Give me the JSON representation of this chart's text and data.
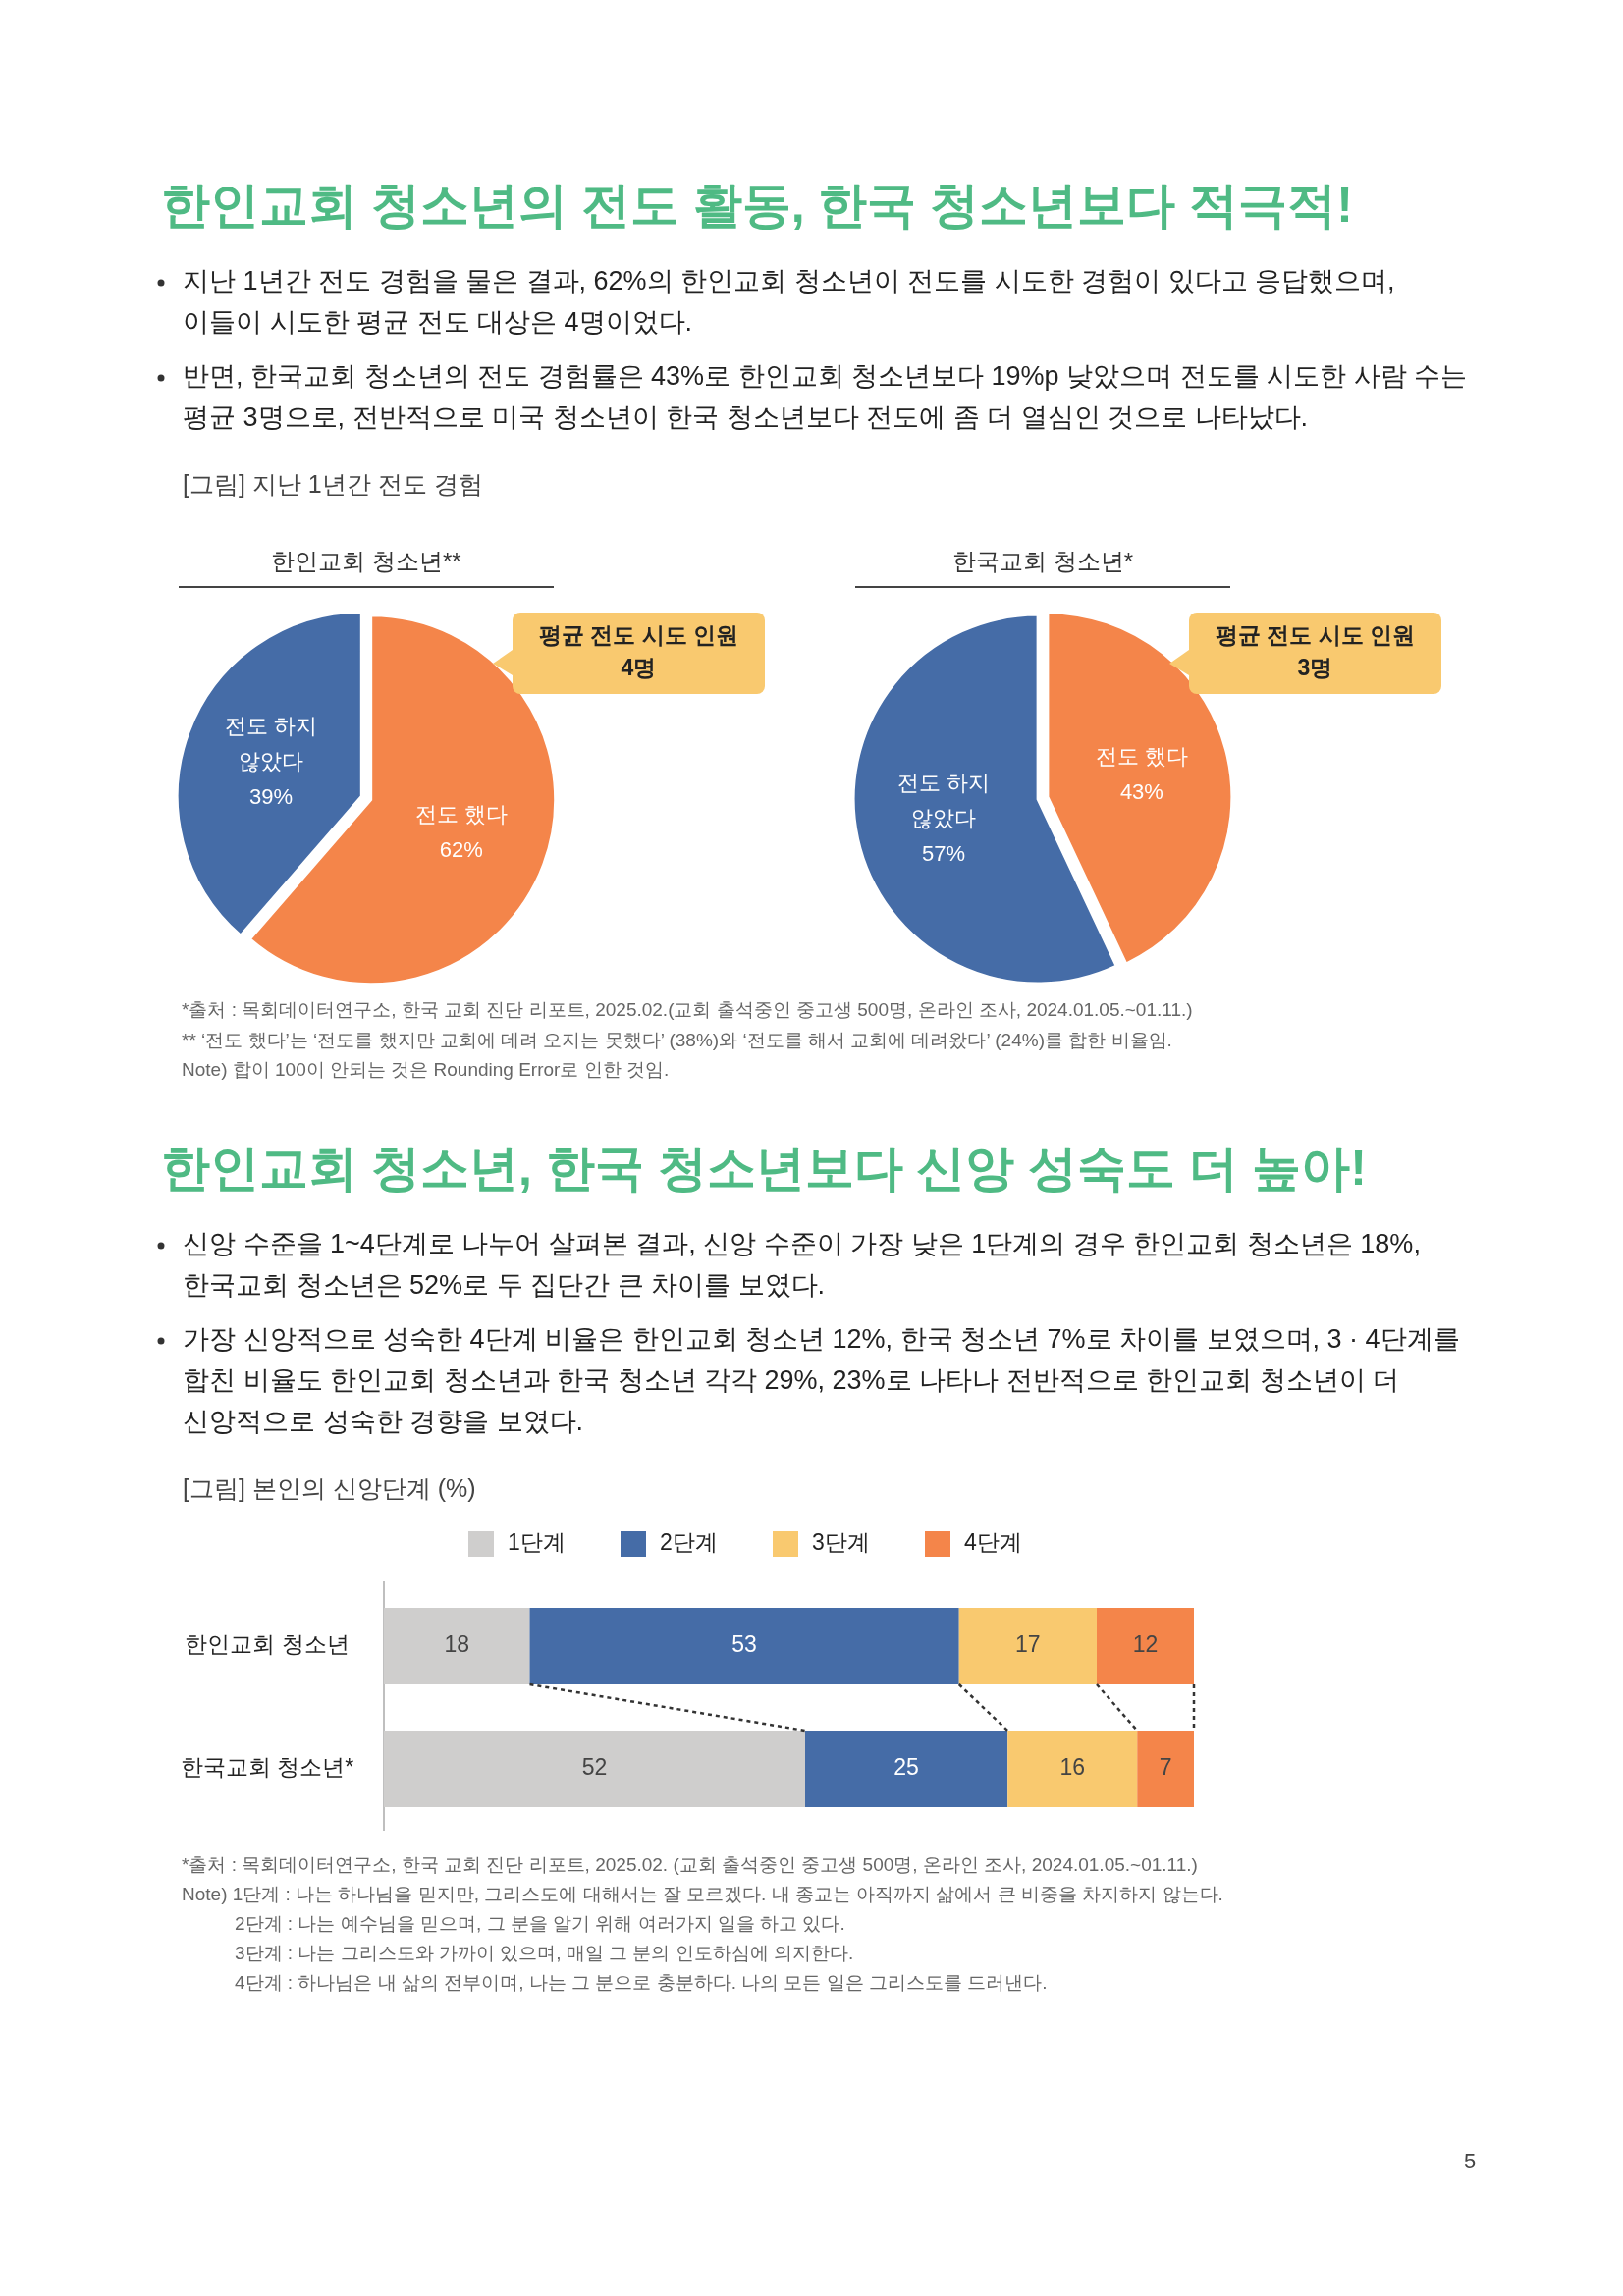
{
  "chart_data": [
    {
      "type": "other",
      "title": "한인교회 청소년의 전도 활동, 한국 청소년보다 적극적!",
      "subtitle": "[그림] 지난 1년간 전도 경험",
      "annotations": [
        "지난 1년간 전도 경험을 물은 결과, 62%의 한인교회 청소년이 전도를 시도한 경험이 있다고 응답했으며, 이들이 시도한 평균 전도 대상은 4명이었다.",
        "반면, 한국교회 청소년의 전도 경험률은 43%로 한인교회 청소년보다 19%p 낮았으며 전도를 시도한 사람 수는 평균 3명으로, 전반적으로 미국 청소년이 한국 청소년보다 전도에 좀 더 열심인 것으로 나타났다."
      ]
    },
    {
      "type": "pie",
      "title": "한인교회 청소년**",
      "categories": [
        "전도 했다",
        "전도 하지 않았다"
      ],
      "values": [
        62,
        39
      ],
      "value_labels": [
        "62%",
        "39%"
      ],
      "colors": [
        "#f4854a",
        "#456ca7"
      ],
      "annotations": [
        "평균 전도 시도 인원 4명"
      ]
    },
    {
      "type": "pie",
      "title": "한국교회 청소년*",
      "categories": [
        "전도 했다",
        "전도 하지 않았다"
      ],
      "values": [
        43,
        57
      ],
      "value_labels": [
        "43%",
        "57%"
      ],
      "colors": [
        "#f4854a",
        "#456ca7"
      ],
      "annotations": [
        "평균 전도 시도 인원 3명",
        "*출처 : 목회데이터연구소, 한국 교회 진단 리포트, 2025.02.(교회 출석중인 중고생 500명, 온라인 조사, 2024.01.05.~01.11.)",
        "** ‘전도 했다’는 ‘전도를 했지만 교회에 데려 오지는 못했다’ (38%)와 ‘전도를 해서 교회에 데려왔다’ (24%)를 합한 비율임.",
        "Note) 합이 100이 안되는 것은 Rounding Error로 인한 것임."
      ]
    },
    {
      "type": "other",
      "title": "한인교회 청소년, 한국 청소년보다 신앙 성숙도 더 높아!",
      "subtitle": "[그림] 본인의 신앙단계 (%)",
      "annotations": [
        "신앙 수준을 1~4단계로 나누어 살펴본 결과, 신앙 수준이 가장 낮은 1단계의 경우 한인교회 청소년은 18%, 한국교회 청소년은 52%로 두 집단간 큰 차이를 보였다.",
        "가장 신앙적으로 성숙한 4단계 비율은 한인교회 청소년 12%, 한국 청소년 7%로 차이를 보였으며, 3 · 4단계를 합친 비율도 한인교회 청소년과 한국 청소년 각각 29%, 23%로 나타나 전반적으로 한인교회 청소년이 더 신앙적으로 성숙한 경향을 보였다."
      ]
    },
    {
      "type": "bar",
      "orientation": "horizontal",
      "stacked": true,
      "data_labels": true,
      "legend": "top",
      "categories": [
        "한인교회 청소년",
        "한국교회 청소년*"
      ],
      "series": [
        {
          "name": "1단계",
          "color": "#cfcecd",
          "values": [
            18,
            52
          ]
        },
        {
          "name": "2단계",
          "color": "#456ca7",
          "values": [
            53,
            25
          ]
        },
        {
          "name": "3단계",
          "color": "#f9c96f",
          "values": [
            17,
            16
          ]
        },
        {
          "name": "4단계",
          "color": "#f4854a",
          "values": [
            12,
            7
          ]
        }
      ],
      "annotations": [
        "*출처 : 목회데이터연구소, 한국 교회 진단 리포트, 2025.02. (교회 출석중인 중고생 500명, 온라인 조사, 2024.01.05.~01.11.)",
        "Note) 1단계 : 나는 하나님을 믿지만, 그리스도에 대해서는 잘 모르겠다. 내 종교는 아직까지 삶에서 큰 비중을 차지하지 않는다.",
        "2단계 : 나는 예수님을 믿으며, 그 분을 알기 위해 여러가지 일을 하고 있다.",
        "3단계 : 나는 그리스도와 가까이 있으며, 매일 그 분의 인도하심에 의지한다.",
        "4단계 : 하나님은 내 삶의 전부이며, 나는 그 분으로 충분하다. 나의 모든 일은 그리스도를 드러낸다."
      ]
    },
    {
      "type": "other",
      "annotations": [
        "5"
      ]
    }
  ]
}
